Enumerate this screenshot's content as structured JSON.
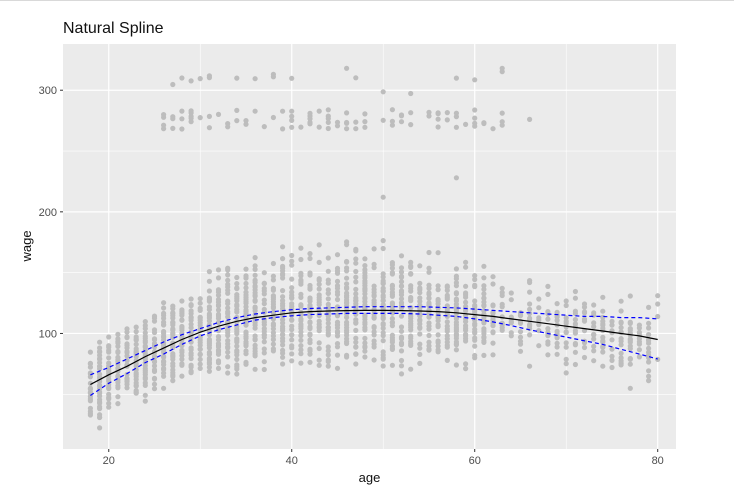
{
  "chart_data": {
    "type": "scatter",
    "title": "Natural Spline",
    "xlabel": "age",
    "ylabel": "wage",
    "xlim": [
      15,
      82
    ],
    "ylim": [
      5,
      338
    ],
    "x_ticks": [
      20,
      40,
      60,
      80
    ],
    "y_ticks": [
      100,
      200,
      300
    ],
    "x_minor": [
      30,
      50,
      70
    ],
    "y_minor": [
      50,
      150,
      250
    ],
    "grid": true,
    "background": "#ebebeb",
    "colors": {
      "points": "#bdbdbd",
      "fit": "#000000",
      "band": "#0000ff",
      "grid": "#ffffff"
    },
    "points_note": "approx 3000 individual observations, ages 18-80; dense between wage 50 and 200 with a high-wage cluster near 270-320",
    "fit": {
      "name": "Natural Spline",
      "x": [
        18,
        20,
        22,
        24,
        26,
        28,
        30,
        32,
        34,
        36,
        38,
        40,
        42,
        44,
        46,
        48,
        50,
        52,
        54,
        56,
        58,
        60,
        62,
        64,
        66,
        68,
        70,
        72,
        74,
        76,
        78,
        80
      ],
      "y": [
        58,
        66,
        73,
        81,
        88,
        95,
        101,
        106,
        110,
        113,
        115,
        117,
        118,
        118.5,
        118.8,
        119,
        119,
        118.8,
        118.5,
        118,
        117,
        115.5,
        114,
        112,
        110,
        108,
        106,
        104,
        102,
        100,
        98,
        95
      ]
    },
    "upper_band": {
      "x": [
        18,
        20,
        22,
        24,
        26,
        28,
        30,
        32,
        34,
        36,
        38,
        40,
        42,
        44,
        46,
        48,
        50,
        52,
        54,
        56,
        58,
        60,
        62,
        64,
        66,
        68,
        70,
        72,
        74,
        76,
        78,
        80
      ],
      "y": [
        66,
        72,
        79,
        86,
        93,
        99,
        104,
        109,
        113,
        116,
        118,
        119.5,
        120.5,
        121,
        121.5,
        122,
        122,
        122,
        122,
        121.5,
        121,
        120,
        119,
        118,
        117,
        116,
        115,
        114,
        114,
        113,
        113,
        112
      ]
    },
    "lower_band": {
      "x": [
        18,
        20,
        22,
        24,
        26,
        28,
        30,
        32,
        34,
        36,
        38,
        40,
        42,
        44,
        46,
        48,
        50,
        52,
        54,
        56,
        58,
        60,
        62,
        64,
        66,
        68,
        70,
        72,
        74,
        76,
        78,
        80
      ],
      "y": [
        49,
        59,
        67,
        76,
        83,
        91,
        98,
        103,
        107,
        111,
        113,
        114.5,
        115.5,
        116,
        116.5,
        116.5,
        116.5,
        116.5,
        116,
        115,
        114,
        112,
        109.5,
        106.5,
        103,
        100,
        97,
        94,
        91,
        87,
        83,
        79
      ]
    }
  }
}
